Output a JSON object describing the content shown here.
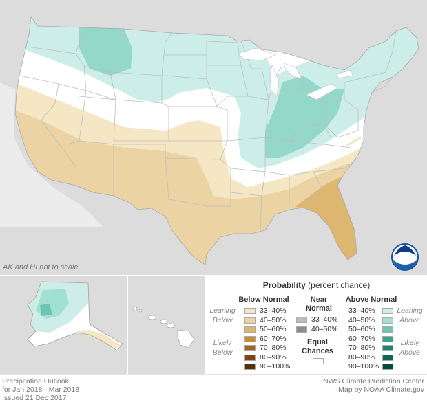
{
  "map": {
    "scale_note": "AK and HI not to scale",
    "colors": {
      "background_land": "#d9d9d9",
      "us_land": "#ffffff",
      "water": "#ffffff",
      "state_border": "#bdbdbd",
      "below_33_40": "#f5e6c4",
      "below_40_50": "#ebd3a3",
      "below_50_60": "#ddb670",
      "above_33_40": "#cdeee8",
      "above_40_50": "#93d8c9",
      "above_50_60": "#6ec5b1"
    },
    "logo_text": "NOAA"
  },
  "legend": {
    "title_bold": "Probability",
    "title_rest": " (percent chance)",
    "below_heading": "Below Normal",
    "near_heading_1": "Near",
    "near_heading_2": "Normal",
    "above_heading": "Above Normal",
    "leaning": "Leaning",
    "below": "Below",
    "above": "Above",
    "likely": "Likely",
    "equal_1": "Equal",
    "equal_2": "Chances",
    "below_rows": [
      {
        "label": "33–40%",
        "color": "#f5e6c4"
      },
      {
        "label": "40–50%",
        "color": "#ebd3a3"
      },
      {
        "label": "50–60%",
        "color": "#ddb670"
      },
      {
        "label": "60–70%",
        "color": "#c98c3a"
      },
      {
        "label": "70–80%",
        "color": "#a8641b"
      },
      {
        "label": "80–90%",
        "color": "#7e4512"
      },
      {
        "label": "90–100%",
        "color": "#55300a"
      }
    ],
    "near_rows": [
      {
        "label": "33–40%",
        "color": "#bdbdbd"
      },
      {
        "label": "40–50%",
        "color": "#8e8e8e"
      }
    ],
    "above_rows": [
      {
        "label": "33–40%",
        "color": "#cdeee8"
      },
      {
        "label": "40–50%",
        "color": "#a3e0d4"
      },
      {
        "label": "50–60%",
        "color": "#6ec5b1"
      },
      {
        "label": "60–70%",
        "color": "#3ea38f"
      },
      {
        "label": "70–80%",
        "color": "#1e8570"
      },
      {
        "label": "80–90%",
        "color": "#0f6655"
      },
      {
        "label": "90–100%",
        "color": "#064a3d"
      }
    ]
  },
  "footer": {
    "left_1": "Precipitation Outlook",
    "left_2": "for Jan 2018 - Mar 2018",
    "left_3": "Issued 21 Dec 2017",
    "right_1": "NWS Climate Prediction Center",
    "right_2": "Map by NOAA Climate.gov"
  }
}
